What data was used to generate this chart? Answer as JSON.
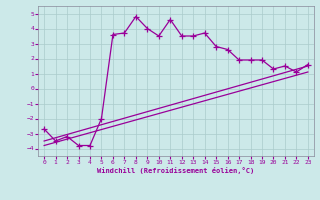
{
  "xlabel": "Windchill (Refroidissement éolien,°C)",
  "bg_color": "#cce9e9",
  "line_color": "#990099",
  "grid_color": "#aacccc",
  "xlim": [
    -0.5,
    23.5
  ],
  "ylim": [
    -4.5,
    5.5
  ],
  "xticks": [
    0,
    1,
    2,
    3,
    4,
    5,
    6,
    7,
    8,
    9,
    10,
    11,
    12,
    13,
    14,
    15,
    16,
    17,
    18,
    19,
    20,
    21,
    22,
    23
  ],
  "yticks": [
    -4,
    -3,
    -2,
    -1,
    0,
    1,
    2,
    3,
    4,
    5
  ],
  "series1_x": [
    0,
    1,
    2,
    3,
    4,
    5,
    6,
    7,
    8,
    9,
    10,
    11,
    12,
    13,
    14,
    15,
    16,
    17,
    18,
    19,
    20,
    21,
    22,
    23
  ],
  "series1_y": [
    -2.7,
    -3.5,
    -3.2,
    -3.8,
    -3.8,
    -2.0,
    3.6,
    3.7,
    4.8,
    4.0,
    3.5,
    4.6,
    3.5,
    3.5,
    3.7,
    2.8,
    2.6,
    1.9,
    1.9,
    1.9,
    1.3,
    1.5,
    1.1,
    1.6
  ],
  "line2_x": [
    0,
    23
  ],
  "line2_y": [
    -3.5,
    1.5
  ],
  "line3_x": [
    0,
    23
  ],
  "line3_y": [
    -3.8,
    1.1
  ]
}
